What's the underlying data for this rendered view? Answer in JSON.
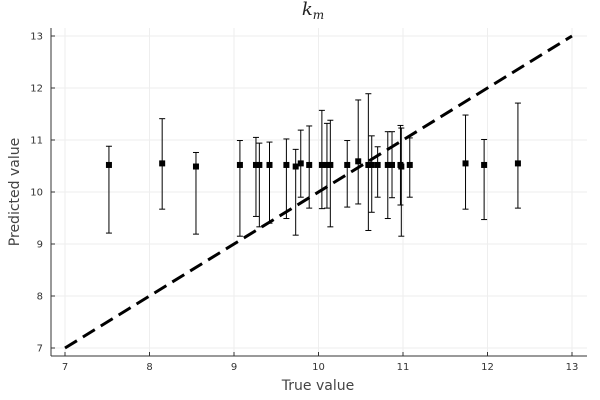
{
  "chart_data": {
    "type": "scatter",
    "title": "k",
    "title_subscript": "m",
    "xlabel": "True value",
    "ylabel": "Predicted value",
    "xlim": [
      7,
      13
    ],
    "ylim": [
      7,
      13
    ],
    "x_ticks": [
      "7",
      "8",
      "9",
      "10",
      "11",
      "12",
      "13"
    ],
    "y_ticks": [
      "7",
      "8",
      "9",
      "10",
      "11",
      "12",
      "13"
    ],
    "grid": true,
    "reference_line": {
      "style": "dashed",
      "from": [
        7,
        7
      ],
      "to": [
        13,
        13
      ],
      "color": "#000000"
    },
    "marker_color": "#000000",
    "points": [
      {
        "x": 7.52,
        "y": 10.52,
        "lo": 9.21,
        "hi": 10.88
      },
      {
        "x": 8.15,
        "y": 10.55,
        "lo": 9.67,
        "hi": 11.41
      },
      {
        "x": 8.55,
        "y": 10.49,
        "lo": 9.19,
        "hi": 10.76
      },
      {
        "x": 9.07,
        "y": 10.52,
        "lo": 9.15,
        "hi": 10.99
      },
      {
        "x": 9.26,
        "y": 10.52,
        "lo": 9.53,
        "hi": 11.05
      },
      {
        "x": 9.3,
        "y": 10.52,
        "lo": 9.33,
        "hi": 10.94
      },
      {
        "x": 9.42,
        "y": 10.52,
        "lo": 9.4,
        "hi": 10.96
      },
      {
        "x": 9.62,
        "y": 10.52,
        "lo": 9.49,
        "hi": 11.02
      },
      {
        "x": 9.73,
        "y": 10.49,
        "lo": 9.17,
        "hi": 10.82
      },
      {
        "x": 9.79,
        "y": 10.55,
        "lo": 9.9,
        "hi": 11.19
      },
      {
        "x": 9.89,
        "y": 10.52,
        "lo": 9.69,
        "hi": 11.27
      },
      {
        "x": 10.04,
        "y": 10.52,
        "lo": 9.68,
        "hi": 11.57
      },
      {
        "x": 10.1,
        "y": 10.52,
        "lo": 9.69,
        "hi": 11.32
      },
      {
        "x": 10.14,
        "y": 10.52,
        "lo": 9.33,
        "hi": 11.38
      },
      {
        "x": 10.34,
        "y": 10.52,
        "lo": 9.71,
        "hi": 10.99
      },
      {
        "x": 10.47,
        "y": 10.59,
        "lo": 9.77,
        "hi": 11.77
      },
      {
        "x": 10.59,
        "y": 10.52,
        "lo": 9.26,
        "hi": 11.89
      },
      {
        "x": 10.63,
        "y": 10.52,
        "lo": 9.61,
        "hi": 11.08
      },
      {
        "x": 10.7,
        "y": 10.52,
        "lo": 9.9,
        "hi": 10.87
      },
      {
        "x": 10.82,
        "y": 10.52,
        "lo": 9.49,
        "hi": 11.16
      },
      {
        "x": 10.87,
        "y": 10.52,
        "lo": 9.89,
        "hi": 11.16
      },
      {
        "x": 10.97,
        "y": 10.52,
        "lo": 9.75,
        "hi": 11.28
      },
      {
        "x": 10.98,
        "y": 10.49,
        "lo": 9.15,
        "hi": 11.23
      },
      {
        "x": 11.08,
        "y": 10.52,
        "lo": 9.9,
        "hi": 11.04
      },
      {
        "x": 11.74,
        "y": 10.55,
        "lo": 9.67,
        "hi": 11.48
      },
      {
        "x": 11.96,
        "y": 10.52,
        "lo": 9.47,
        "hi": 11.01
      },
      {
        "x": 12.36,
        "y": 10.55,
        "lo": 9.69,
        "hi": 11.71
      }
    ]
  }
}
